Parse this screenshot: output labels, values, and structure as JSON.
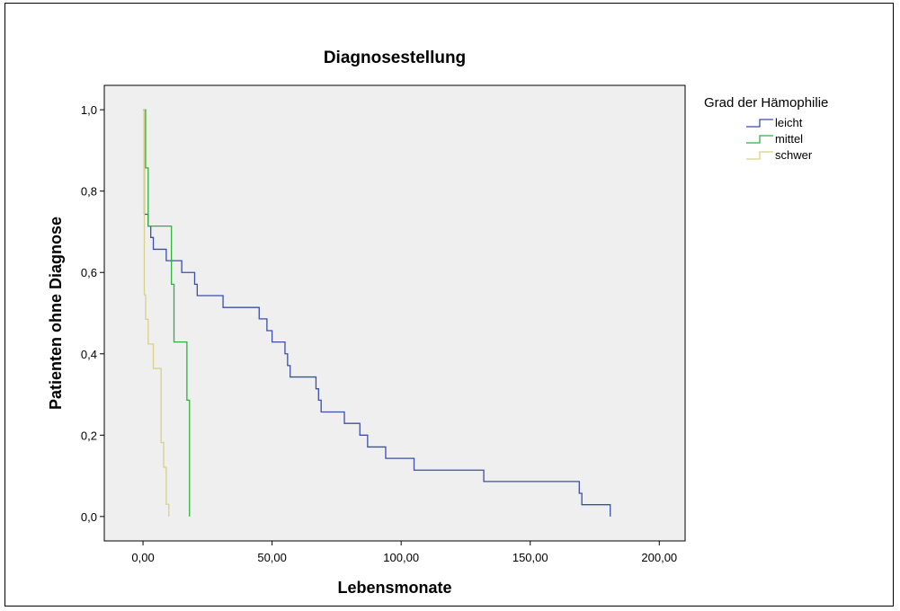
{
  "chart_data": {
    "type": "line",
    "step": true,
    "title": "Diagnosestellung",
    "xlabel": "Lebensmonate",
    "ylabel": "Patienten ohne Diagnose",
    "xlim": [
      -15,
      210
    ],
    "ylim": [
      -0.06,
      1.06
    ],
    "xticks": [
      0,
      50,
      100,
      150,
      200
    ],
    "xtick_labels": [
      "0,00",
      "50,00",
      "100,00",
      "150,00",
      "200,00"
    ],
    "yticks": [
      0.0,
      0.2,
      0.4,
      0.6,
      0.8,
      1.0
    ],
    "ytick_labels": [
      "0,0",
      "0,2",
      "0,4",
      "0,6",
      "0,8",
      "1,0"
    ],
    "grid": false,
    "legend": {
      "title": "Grad der Hämophilie",
      "placement": "right"
    },
    "plot_background": "#efefef",
    "series": [
      {
        "name": "leicht",
        "color": "#3b4fa8",
        "x": [
          0.5,
          2,
          3,
          4,
          9,
          15,
          20,
          21,
          31,
          45,
          48,
          50,
          55,
          56,
          57,
          60,
          67,
          68,
          69,
          73,
          78,
          84,
          87,
          94,
          105,
          132,
          169,
          170,
          181
        ],
        "y": [
          0.743,
          0.714,
          0.686,
          0.657,
          0.629,
          0.6,
          0.571,
          0.543,
          0.514,
          0.486,
          0.457,
          0.429,
          0.4,
          0.371,
          0.343,
          0.343,
          0.314,
          0.286,
          0.257,
          0.257,
          0.229,
          0.2,
          0.171,
          0.143,
          0.114,
          0.086,
          0.057,
          0.029,
          0.0
        ]
      },
      {
        "name": "mittel",
        "color": "#2db33d",
        "x": [
          1,
          2,
          10,
          11,
          12,
          17,
          18
        ],
        "y": [
          0.857,
          0.714,
          0.714,
          0.571,
          0.429,
          0.286,
          0.143
        ],
        "x_end": 18,
        "y_end": 0.0
      },
      {
        "name": "schwer",
        "color": "#d9d08c",
        "x": [
          0.5,
          1,
          2,
          3,
          4,
          7,
          8,
          9
        ],
        "y": [
          0.545,
          0.485,
          0.424,
          0.424,
          0.364,
          0.182,
          0.121,
          0.03
        ],
        "x_end": 10,
        "y_end": 0.0
      }
    ]
  }
}
